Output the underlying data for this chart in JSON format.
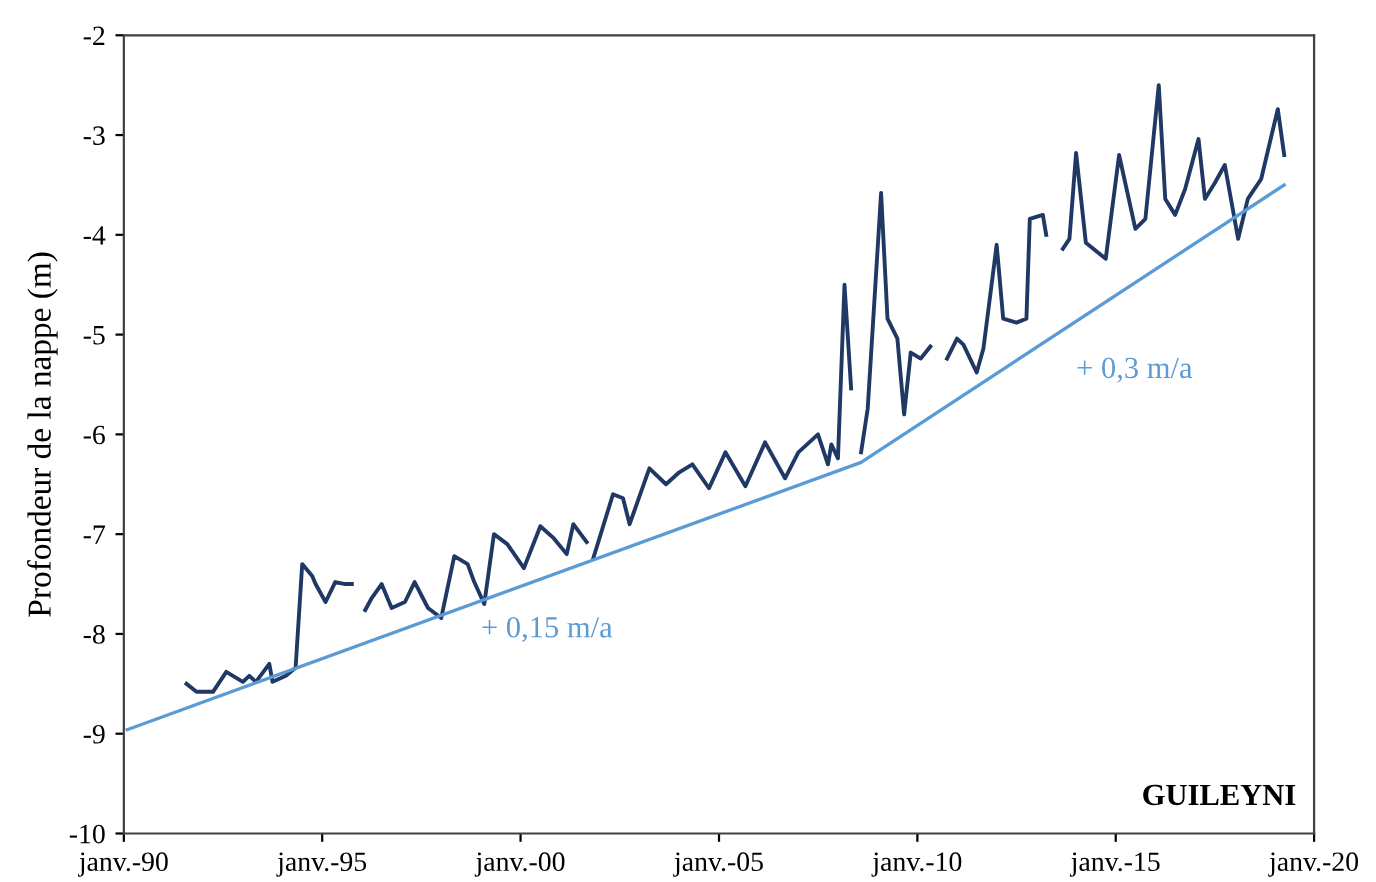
{
  "chart_data": {
    "type": "line",
    "ylabel": "Profondeur de la nappe (m)",
    "xlim": [
      "1990-01",
      "2020-01"
    ],
    "xticks": [
      {
        "value": "1990-01",
        "label": "janv.-90"
      },
      {
        "value": "1995-01",
        "label": "janv.-95"
      },
      {
        "value": "2000-01",
        "label": "janv.-00"
      },
      {
        "value": "2005-01",
        "label": "janv.-05"
      },
      {
        "value": "2010-01",
        "label": "janv.-10"
      },
      {
        "value": "2015-01",
        "label": "janv.-15"
      },
      {
        "value": "2020-01",
        "label": "janv.-20"
      }
    ],
    "ylim": [
      -10,
      -2
    ],
    "yticks": [
      -10,
      -9,
      -8,
      -7,
      -6,
      -5,
      -4,
      -3,
      -2
    ],
    "grid": false,
    "legend": false,
    "marker": "none",
    "line_style": "solid",
    "series": [
      {
        "color": "#1f3864",
        "x": [
          "1991-08",
          "1991-11",
          "1992-04",
          "1992-08",
          "1993-01",
          "1993-03",
          "1993-05",
          "1993-09",
          "1993-10",
          "1994-02",
          "1994-05",
          "1994-07",
          "1994-10",
          "1994-11",
          "1995-02",
          "1995-05",
          "1995-08",
          "1995-10",
          "1996-01",
          "1996-02",
          "1996-04",
          "1996-07",
          "1996-10",
          "1997-02",
          "1997-05",
          "1997-09",
          "1998-01",
          "1998-05",
          "1998-09",
          "1998-11",
          "1999-02",
          "1999-05",
          "1999-09",
          "2000-02",
          "2000-07",
          "2000-11",
          "2001-03",
          "2001-05",
          "2001-09",
          "2001-10",
          "2001-11",
          "2002-05",
          "2002-08",
          "2002-10",
          "2003-04",
          "2003-09",
          "2004-01",
          "2004-05",
          "2004-10",
          "2005-03",
          "2005-09",
          "2006-03",
          "2006-09",
          "2007-01",
          "2007-07",
          "2007-10",
          "2007-11",
          "2008-01",
          "2008-03",
          "2008-05",
          "2008-07",
          "2008-08",
          "2008-10",
          "2009-02",
          "2009-04",
          "2009-07",
          "2009-09",
          "2009-11",
          "2010-02",
          "2010-05",
          "2010-08",
          "2010-10",
          "2011-01",
          "2011-03",
          "2011-07",
          "2011-09",
          "2012-01",
          "2012-03",
          "2012-07",
          "2012-10",
          "2012-11",
          "2013-03",
          "2013-04",
          "2013-07",
          "2013-09",
          "2013-11",
          "2014-01",
          "2014-04",
          "2014-10",
          "2015-02",
          "2015-07",
          "2015-10",
          "2016-02",
          "2016-04",
          "2016-07",
          "2016-10",
          "2017-02",
          "2017-04",
          "2017-07",
          "2017-10",
          "2018-02",
          "2018-05",
          "2018-09",
          "2019-02",
          "2019-04"
        ],
        "values": [
          -8.5,
          -8.58,
          -8.58,
          -8.38,
          -8.48,
          -8.42,
          -8.48,
          -8.3,
          -8.48,
          -8.42,
          -8.34,
          -7.3,
          -7.42,
          -7.5,
          -7.68,
          -7.48,
          -7.5,
          -7.5,
          null,
          -7.76,
          -7.64,
          -7.5,
          -7.74,
          -7.68,
          -7.48,
          -7.74,
          -7.84,
          -7.22,
          -7.3,
          -7.48,
          -7.7,
          -7.0,
          -7.1,
          -7.34,
          -6.92,
          -7.04,
          -7.2,
          -6.9,
          -7.08,
          null,
          -7.24,
          -6.6,
          -6.64,
          -6.9,
          -6.34,
          -6.5,
          -6.38,
          -6.3,
          -6.54,
          -6.18,
          -6.52,
          -6.08,
          -6.44,
          -6.18,
          -6.0,
          -6.3,
          -6.1,
          -6.24,
          -4.5,
          -5.54,
          null,
          -6.18,
          -5.74,
          -3.58,
          -4.84,
          -5.04,
          -5.8,
          -5.18,
          -5.24,
          -5.12,
          null,
          -5.24,
          -5.04,
          -5.1,
          -5.38,
          -5.14,
          -4.1,
          -4.84,
          -4.88,
          -4.84,
          -3.84,
          -3.8,
          -4.0,
          null,
          -4.14,
          -4.04,
          -3.18,
          -4.08,
          -4.24,
          -3.2,
          -3.94,
          -3.84,
          -2.5,
          -3.64,
          -3.8,
          -3.54,
          -3.04,
          -3.64,
          -3.48,
          -3.3,
          -4.04,
          -3.64,
          -3.44,
          -2.74,
          -3.2
        ]
      },
      {
        "type": "line",
        "color": "#5b9bd5",
        "x": [
          "1990-02",
          "2008-08",
          "2019-04"
        ],
        "values": [
          -8.96,
          -6.28,
          -3.5
        ]
      }
    ],
    "annotations": [
      "+ 0,15 m/a",
      "+ 0,3 m/a",
      "GUILEYNI"
    ]
  }
}
